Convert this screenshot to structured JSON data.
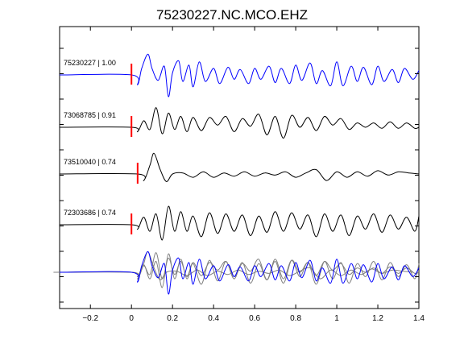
{
  "chart_data": {
    "type": "line",
    "title": "75230227.NC.MCO.EHZ",
    "xlabel": "",
    "ylabel": "",
    "xlim": [
      -0.35,
      1.4
    ],
    "x_ticks": [
      -0.2,
      0,
      0.2,
      0.4,
      0.6,
      0.8,
      1,
      1.2,
      1.4
    ],
    "x_tick_labels": [
      "−0.2",
      "0",
      "0.2",
      "0.4",
      "0.6",
      "0.8",
      "1",
      "1.2",
      "1.4"
    ],
    "grid": false,
    "colors": {
      "reference": "#0000ff",
      "trace": "#000000",
      "pick": "#ff0000",
      "overlay": "#808080"
    },
    "series": [
      {
        "name": "75230227 | 1.00",
        "color": "#0000ff",
        "pick_time": 0.0,
        "x": [
          -0.35,
          0.0,
          0.03,
          0.05,
          0.08,
          0.1,
          0.13,
          0.16,
          0.18,
          0.2,
          0.23,
          0.25,
          0.28,
          0.3,
          0.33,
          0.36,
          0.4,
          0.43,
          0.47,
          0.5,
          0.53,
          0.57,
          0.6,
          0.63,
          0.67,
          0.7,
          0.73,
          0.77,
          0.8,
          0.83,
          0.87,
          0.9,
          0.93,
          0.97,
          1.0,
          1.03,
          1.07,
          1.1,
          1.13,
          1.17,
          1.2,
          1.23,
          1.27,
          1.3,
          1.33,
          1.37,
          1.4
        ],
        "values": [
          0.0,
          0.0,
          -0.45,
          0.3,
          0.95,
          0.3,
          -0.25,
          0.4,
          -1.0,
          0.1,
          0.65,
          -0.3,
          0.45,
          -0.55,
          0.6,
          -0.3,
          0.3,
          -0.4,
          0.35,
          -0.2,
          0.25,
          -0.4,
          0.3,
          -0.2,
          0.4,
          -0.35,
          0.3,
          -0.4,
          0.45,
          -0.25,
          0.55,
          -0.4,
          0.2,
          -0.5,
          0.6,
          -0.5,
          0.4,
          -0.3,
          0.35,
          -0.45,
          0.4,
          -0.3,
          0.25,
          -0.35,
          0.3,
          -0.2,
          0.2
        ]
      },
      {
        "name": "73068785 | 0.91",
        "color": "#000000",
        "pick_time": 0.0,
        "x": [
          -0.35,
          0.0,
          0.03,
          0.06,
          0.09,
          0.12,
          0.15,
          0.18,
          0.21,
          0.24,
          0.27,
          0.3,
          0.34,
          0.38,
          0.42,
          0.46,
          0.5,
          0.54,
          0.58,
          0.62,
          0.66,
          0.7,
          0.74,
          0.78,
          0.82,
          0.86,
          0.9,
          0.94,
          0.98,
          1.02,
          1.06,
          1.1,
          1.14,
          1.18,
          1.22,
          1.26,
          1.3,
          1.34,
          1.38,
          1.4
        ],
        "values": [
          0.0,
          0.0,
          -0.2,
          0.3,
          -0.1,
          0.9,
          -0.3,
          0.65,
          -0.1,
          0.5,
          -0.2,
          0.45,
          -0.15,
          0.45,
          0.1,
          0.5,
          -0.2,
          0.4,
          0.05,
          0.6,
          -0.35,
          0.5,
          -0.5,
          0.55,
          0.0,
          0.45,
          -0.15,
          0.5,
          0.1,
          0.4,
          -0.1,
          0.2,
          0.0,
          0.2,
          -0.05,
          0.25,
          -0.05,
          0.2,
          -0.05,
          0.0
        ]
      },
      {
        "name": "73510040 | 0.74",
        "color": "#000000",
        "pick_time": 0.03,
        "x": [
          -0.35,
          0.03,
          0.06,
          0.09,
          0.11,
          0.14,
          0.17,
          0.2,
          0.25,
          0.3,
          0.35,
          0.4,
          0.45,
          0.5,
          0.55,
          0.6,
          0.65,
          0.7,
          0.75,
          0.8,
          0.85,
          0.9,
          0.95,
          1.0,
          1.05,
          1.1,
          1.15,
          1.2,
          1.25,
          1.3,
          1.35,
          1.4
        ],
        "values": [
          0.0,
          0.0,
          -0.3,
          0.4,
          0.95,
          0.2,
          -0.35,
          0.0,
          0.05,
          -0.15,
          0.1,
          -0.15,
          0.05,
          -0.1,
          0.1,
          -0.1,
          0.05,
          -0.05,
          0.1,
          -0.15,
          0.05,
          0.2,
          -0.3,
          0.1,
          -0.15,
          0.1,
          -0.1,
          0.15,
          -0.05,
          0.1,
          0.05,
          0.0
        ]
      },
      {
        "name": "72303686 | 0.74",
        "color": "#000000",
        "pick_time": 0.0,
        "x": [
          -0.35,
          0.0,
          0.03,
          0.06,
          0.09,
          0.12,
          0.15,
          0.18,
          0.21,
          0.24,
          0.27,
          0.3,
          0.34,
          0.38,
          0.42,
          0.46,
          0.5,
          0.54,
          0.58,
          0.62,
          0.66,
          0.7,
          0.74,
          0.78,
          0.82,
          0.86,
          0.9,
          0.94,
          0.98,
          1.02,
          1.06,
          1.1,
          1.14,
          1.18,
          1.22,
          1.26,
          1.3,
          1.34,
          1.38,
          1.4
        ],
        "values": [
          0.0,
          0.0,
          -0.2,
          0.35,
          -0.3,
          0.5,
          -0.7,
          0.85,
          -0.3,
          0.6,
          -0.3,
          0.4,
          -0.55,
          0.55,
          -0.4,
          0.5,
          -0.3,
          0.45,
          -0.5,
          0.4,
          -0.35,
          0.6,
          -0.3,
          0.55,
          -0.2,
          0.45,
          -0.55,
          0.5,
          -0.3,
          0.45,
          -0.5,
          0.4,
          -0.2,
          0.5,
          -0.35,
          0.45,
          -0.2,
          0.35,
          -0.3,
          0.4
        ]
      }
    ]
  }
}
